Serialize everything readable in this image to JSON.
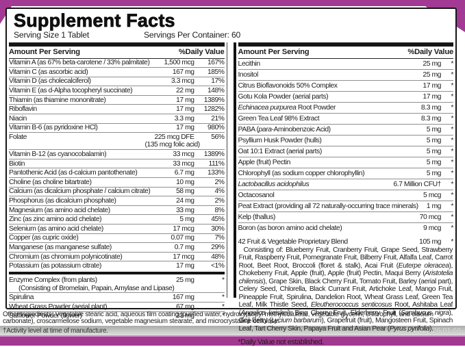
{
  "header": {
    "title": "Supplement Facts",
    "serving_size": "Serving Size 1 Tablet",
    "servings_per_container": "Servings Per Container: 60"
  },
  "columns": {
    "amount_header": "Amount Per Serving",
    "dv_header": "%Daily Value"
  },
  "left_rows": [
    {
      "name": "Vitamin A (as 67% beta-carotene / 33% palmitate)",
      "amount": "1,500 mcg",
      "dv": "167%"
    },
    {
      "name": "Vitamin C (as ascorbic acid)",
      "amount": "167 mg",
      "dv": "185%"
    },
    {
      "name": "Vitamin D (as cholecalciferol)",
      "amount": "3.3 mcg",
      "dv": "17%"
    },
    {
      "name": "Vitamin E (as d-Alpha tocopheryl succinate)",
      "amount": "22 mg",
      "dv": "148%"
    },
    {
      "name": "Thiamin (as thiamine mononitrate)",
      "amount": "17 mg",
      "dv": "1389%"
    },
    {
      "name": "Riboflavin",
      "amount": "17 mg",
      "dv": "1282%"
    },
    {
      "name": "Niacin",
      "amount": "3.3 mg",
      "dv": "21%"
    },
    {
      "name": "Vitamin B-6 (as pyridoxine HCl)",
      "amount": "17 mg",
      "dv": "980%"
    },
    {
      "name": "Folate",
      "amount": "225 mcg DFE",
      "amount2": "(135 mcg folic acid)",
      "dv": "56%"
    },
    {
      "name": "Vitamin B-12 (as cyanocobalamin)",
      "amount": "33 mcg",
      "dv": "1389%"
    },
    {
      "name": "Biotin",
      "amount": "33 mcg",
      "dv": "111%"
    },
    {
      "name": "Pantothenic Acid (as d-calcium pantothenate)",
      "amount": "6.7 mg",
      "dv": "133%"
    },
    {
      "name": "Choline (as choline bitartrate)",
      "amount": "10 mg",
      "dv": "2%"
    },
    {
      "name": "Calcium (as dicalcium phosphate / calcium citrate)",
      "amount": "58 mg",
      "dv": "4%"
    },
    {
      "name": "Phosphorus (as dicalcium phosphate)",
      "amount": "24 mg",
      "dv": "2%"
    },
    {
      "name": "Magnesium (as amino acid chelate)",
      "amount": "33 mg",
      "dv": "8%"
    },
    {
      "name": "Zinc (as zinc amino acid chelate)",
      "amount": "5 mg",
      "dv": "45%"
    },
    {
      "name": "Selenium (as amino acid chelate)",
      "amount": "17 mcg",
      "dv": "30%"
    },
    {
      "name": "Copper (as cupric oxide)",
      "amount": "0.07 mg",
      "dv": "7%"
    },
    {
      "name": "Manganese (as manganese sulfate)",
      "amount": "0.7 mg",
      "dv": "29%"
    },
    {
      "name": "Chromium (as chromium polynicotinate)",
      "amount": "17 mcg",
      "dv": "48%"
    },
    {
      "name": "Potassium (as potassium citrate)",
      "amount": "17 mg",
      "dv": "<1%"
    },
    {
      "divider": true
    },
    {
      "name": "Enzyme Complex (from plants)",
      "amount": "25 mg",
      "dv": "*",
      "sub": "(Consisting of Bromelain, Papain, Amylase and Lipase)"
    },
    {
      "name": "Spirulina",
      "amount": "167 mg",
      "dv": "*"
    },
    {
      "name": "Wheat Grass Powder (aerial plant)",
      "amount": "67 mg",
      "dv": "*"
    },
    {
      "name": "Safflower Powder (flower)",
      "amount": "33 mg",
      "dv": "*"
    }
  ],
  "right_rows": [
    {
      "name": "Lecithin",
      "amount": "25 mg",
      "dv": "*"
    },
    {
      "name": "Inositol",
      "amount": "25 mg",
      "dv": "*"
    },
    {
      "name": "Citrus Bioflavonoids 50% Complex",
      "amount": "17 mg",
      "dv": "*"
    },
    {
      "name": "Gotu Kola Powder (aerial parts)",
      "amount": "17 mg",
      "dv": "*"
    },
    {
      "name": "~Echinacea purpurea~ Root Powder",
      "amount": "8.3 mg",
      "dv": "*"
    },
    {
      "name": "Green Tea Leaf 98% Extract",
      "amount": "8.3 mg",
      "dv": "*"
    },
    {
      "name": "PABA (~para~-Aminobenzoic Acid)",
      "amount": "5 mg",
      "dv": "*"
    },
    {
      "name": "Psyllium Husk Powder (hulls)",
      "amount": "5 mg",
      "dv": "*"
    },
    {
      "name": "Oat 10:1 Extract (aerial parts)",
      "amount": "5 mg",
      "dv": "*"
    },
    {
      "name": "Apple (fruit) Pectin",
      "amount": "5 mg",
      "dv": "*"
    },
    {
      "name": "Chlorophyll (as sodium copper chlorophyllin)",
      "amount": "5 mg",
      "dv": "*"
    },
    {
      "name": "~Lactobacillus acidophilus~",
      "amount": "6.7 Million CFU†",
      "dv": "*"
    },
    {
      "name": "Octacosanol",
      "amount": "5 mcg",
      "dv": "*"
    },
    {
      "name": "Peat Extract (providing all 72 naturally-occurring trace minerals)",
      "amount": "1 mg",
      "dv": "*"
    },
    {
      "name": "Kelp (thallus)",
      "amount": "70 mcg",
      "dv": "*"
    },
    {
      "name": "Boron (as boron amino acid chelate)",
      "amount": "9 mcg",
      "dv": "*"
    }
  ],
  "blend": {
    "name": "42 Fruit & Vegetable Proprietary Blend",
    "amount": "105 mg",
    "dv": "*",
    "description": "Consisting of: Blueberry Fruit, Cranberry Fruit, Grape Seed, Strawberry Fruit, Raspberry Fruit, Pomegranate Fruit, Bilberry Fruit, Alfalfa Leaf, Carrot Root, Beet Root, Broccoli (floret & stalk), Acai Fruit (~Euterpe oleracea~), Chokeberry Fruit, Apple (fruit), Apple (fruit) Pectin, Maqui Berry (~Aristotelia chilensis~), Grape Skin, Black Cherry Fruit, Tomato Fruit, Barley (aerial part), Celery Seed, Chlorella, Black Currant Fruit, Artichoke Leaf, Mango Fruit, Pineapple Fruit, Spirulina, Dandelion Root, Wheat Grass Leaf, Green Tea Leaf, Milk Thistle Seed, ~Eleutherococcus senticosus~ Root, Ashitaba Leaf (~Angelica keiskei~), Bing Cherry Fruit, Elderberry Fruit (~Sambucus nigra~), Goji Berry (~Lycium barbarum~), Grapefruit (fruit), Mangosteen Fruit, Spinach Leaf, Tart Cherry Skin, Papaya Fruit and Asian Pear (~Pyrus pyrifolia~)."
  },
  "dv_note": "*Daily Value not established.",
  "footer": {
    "other_ingredients": "Other Ingredients: Vegetable stearic acid, aqueous film coating (purified water, hydroxypropyl methylcellulose, vegetable glycerin, chlorophyll, and calcium carbonate), croscarmellose sodium, vegetable magnesium stearate, and microcrystalline cellulose.",
    "activity_note": "†Activity level at time of manufacture.",
    "product_code": "6054-VLI426-01-60"
  },
  "colors": {
    "ribbon_purple": "#a23a93",
    "ribbon_bottom_purple": "#a2388f",
    "ribbon_pink_edge": "#cd8ac1",
    "gray_band_top": "#a9ada9",
    "gray_band_bottom": "#dfe0de",
    "rule_black": "#151515",
    "hairline_gray": "#8f8f8f"
  }
}
